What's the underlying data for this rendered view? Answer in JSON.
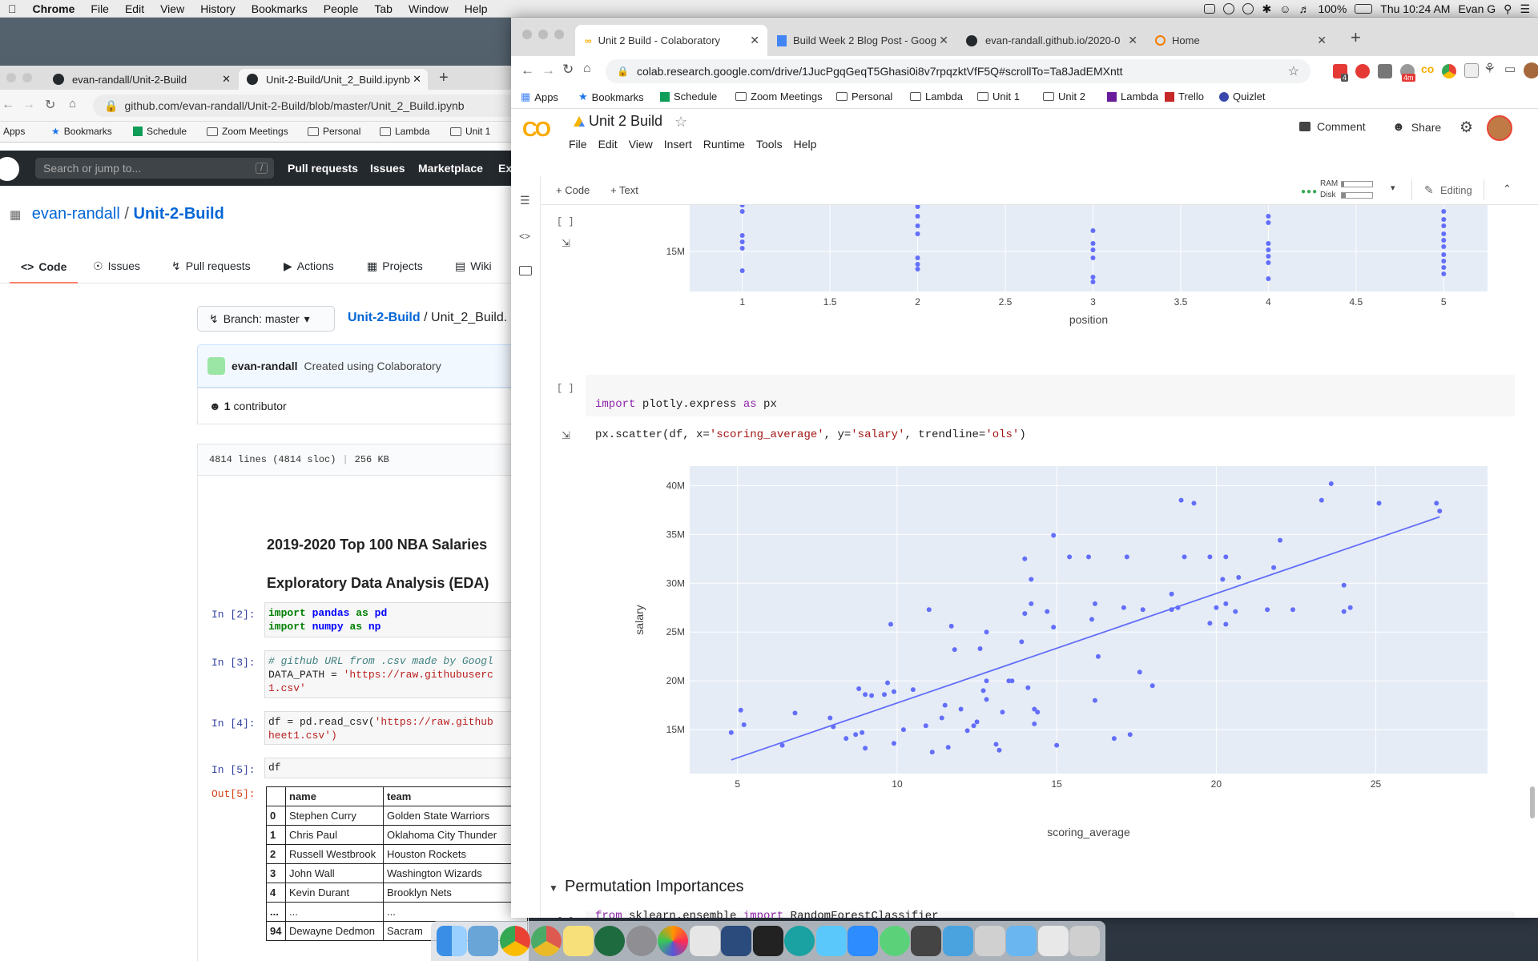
{
  "menubar": {
    "app": "Chrome",
    "items": [
      "File",
      "Edit",
      "View",
      "History",
      "Bookmarks",
      "People",
      "Tab",
      "Window",
      "Help"
    ],
    "battery": "100%",
    "clock": "Thu 10:24 AM",
    "user": "Evan G"
  },
  "github_window": {
    "tabs": [
      "evan-randall/Unit-2-Build",
      "Unit-2-Build/Unit_2_Build.ipynb"
    ],
    "url": "github.com/evan-randall/Unit-2-Build/blob/master/Unit_2_Build.ipynb",
    "bookmarks": [
      "Apps",
      "Bookmarks",
      "Schedule",
      "Zoom Meetings",
      "Personal",
      "Lambda",
      "Unit 1"
    ],
    "search_placeholder": "Search or jump to...",
    "search_key": "/",
    "nav": [
      "Pull requests",
      "Issues",
      "Marketplace",
      "Ex"
    ],
    "repo_owner": "evan-randall",
    "repo_sep": "/",
    "repo_name": "Unit-2-Build",
    "repo_tabs": [
      "Code",
      "Issues",
      "Pull requests",
      "Actions",
      "Projects",
      "Wiki"
    ],
    "branch": "Branch: master",
    "path_repo": "Unit-2-Build",
    "path_sep": "/",
    "path_file": "Unit_2_Build.",
    "commit_user": "evan-randall",
    "commit_msg": "Created using Colaboratory",
    "contributors_count": "1",
    "contributors_label": "contributor",
    "file_lines": "4814 lines (4814 sloc)",
    "file_size": "256 KB",
    "nb_title1": "2019-2020 Top 100 NBA Salaries",
    "nb_title2": "Exploratory Data Analysis (EDA)",
    "prompts": [
      "In [2]:",
      "In [3]:",
      "In [4]:",
      "In [5]:",
      "Out[5]:"
    ],
    "code2_kw1": "import",
    "code2_mod1": "pandas",
    "code2_as1": "as",
    "code2_al1": "pd",
    "code2_kw2": "import",
    "code2_mod2": "numpy",
    "code2_as2": "as",
    "code2_al2": "np",
    "code3_comment": "# github URL from .csv made by Googl",
    "code3_line2a": "DATA_PATH = ",
    "code3_line2b": "'https://raw.githubuserc",
    "code3_line3": "1.csv'",
    "code4_line1a": "df = pd.read_csv(",
    "code4_line1b": "'https://raw.github",
    "code4_line2": "heet1.csv')",
    "code5": "df",
    "table_headers": [
      "",
      "name",
      "team"
    ],
    "table_rows": [
      [
        "0",
        "Stephen Curry",
        "Golden State Warriors"
      ],
      [
        "1",
        "Chris Paul",
        "Oklahoma City Thunder"
      ],
      [
        "2",
        "Russell Westbrook",
        "Houston Rockets"
      ],
      [
        "3",
        "John Wall",
        "Washington Wizards"
      ],
      [
        "4",
        "Kevin Durant",
        "Brooklyn Nets"
      ],
      [
        "...",
        "...",
        "..."
      ],
      [
        "94",
        "Dewayne Dedmon",
        "Sacram"
      ]
    ]
  },
  "colab_window": {
    "tabs": [
      "Unit 2 Build - Colaboratory",
      "Build Week 2 Blog Post - Goog",
      "evan-randall.github.io/2020-0",
      "Home"
    ],
    "url": "colab.research.google.com/drive/1JucPgqGeqT5Ghasi0i8v7rpqzktVfF5Q#scrollTo=Ta8JadEMXntt",
    "ext_badges": [
      "4",
      "4m"
    ],
    "bookmarks": [
      "Apps",
      "Bookmarks",
      "Schedule",
      "Zoom Meetings",
      "Personal",
      "Lambda",
      "Unit 1",
      "Unit 2",
      "Lambda",
      "Trello",
      "Quizlet"
    ],
    "logo": "CO",
    "title": "Unit 2 Build",
    "menu": [
      "File",
      "Edit",
      "View",
      "Insert",
      "Runtime",
      "Tools",
      "Help"
    ],
    "comment": "Comment",
    "share": "Share",
    "add_code": "+ Code",
    "add_text": "+ Text",
    "ram": "RAM",
    "disk": "Disk",
    "editing": "Editing",
    "cell_bracket": "[ ]",
    "code_line1_kw": "import",
    "code_line1_mod": " plotly.express ",
    "code_line1_as": "as",
    "code_line1_al": " px",
    "code_line2a": "px.scatter(df, x=",
    "code_line2b": "'scoring_average'",
    "code_line2c": ", y=",
    "code_line2d": "'salary'",
    "code_line2e": ", trendline=",
    "code_line2f": "'ols'",
    "code_line2g": ")",
    "section_title": "Permutation Importances",
    "next_code_kw1": "from",
    "next_code_mod": " sklearn.ensemble ",
    "next_code_kw2": "import",
    "next_code_cls": " RandomForestClassifier"
  },
  "chart_data": [
    {
      "type": "scatter",
      "xlabel": "position",
      "ylabel": "",
      "x_ticks": [
        "1",
        "1.5",
        "2",
        "2.5",
        "3",
        "3.5",
        "4",
        "4.5",
        "5"
      ],
      "y_ticks": [
        "15M"
      ],
      "xlim": [
        0.7,
        5.25
      ],
      "ylim": [
        12.5,
        17.9
      ],
      "points": [
        [
          1,
          17.9
        ],
        [
          1,
          17.5
        ],
        [
          1,
          16.0
        ],
        [
          1,
          15.6
        ],
        [
          1,
          15.2
        ],
        [
          1,
          13.8
        ],
        [
          2,
          17.8
        ],
        [
          2,
          17.2
        ],
        [
          2,
          16.6
        ],
        [
          2,
          16.1
        ],
        [
          2,
          14.6
        ],
        [
          2,
          14.2
        ],
        [
          2,
          13.9
        ],
        [
          3,
          16.3
        ],
        [
          3,
          15.5
        ],
        [
          3,
          15.1
        ],
        [
          3,
          14.6
        ],
        [
          3,
          13.4
        ],
        [
          3,
          13.1
        ],
        [
          4,
          17.2
        ],
        [
          4,
          16.8
        ],
        [
          4,
          15.5
        ],
        [
          4,
          15.1
        ],
        [
          4,
          14.7
        ],
        [
          4,
          14.3
        ],
        [
          4,
          13.3
        ],
        [
          5,
          17.5
        ],
        [
          5,
          17.0
        ],
        [
          5,
          16.6
        ],
        [
          5,
          16.1
        ],
        [
          5,
          15.7
        ],
        [
          5,
          15.3
        ],
        [
          5,
          14.8
        ],
        [
          5,
          14.4
        ],
        [
          5,
          14.0
        ],
        [
          5,
          13.6
        ]
      ],
      "colors": {
        "marker": "#636efa",
        "plot_bg": "#e5ecf6"
      }
    },
    {
      "type": "scatter",
      "xlabel": "scoring_average",
      "ylabel": "salary",
      "x_ticks": [
        "5",
        "10",
        "15",
        "20",
        "25"
      ],
      "y_ticks": [
        "15M",
        "20M",
        "25M",
        "30M",
        "35M",
        "40M"
      ],
      "xlim": [
        3.5,
        28.5
      ],
      "ylim": [
        10.5,
        42.0
      ],
      "trendline": {
        "x0": 4.8,
        "y0": 11.9,
        "x1": 27.0,
        "y1": 36.8
      },
      "points": [
        [
          4.8,
          14.7
        ],
        [
          5.1,
          17.0
        ],
        [
          5.2,
          15.5
        ],
        [
          6.4,
          13.4
        ],
        [
          6.8,
          16.7
        ],
        [
          7.9,
          16.2
        ],
        [
          8.0,
          15.3
        ],
        [
          8.4,
          14.1
        ],
        [
          8.7,
          14.5
        ],
        [
          8.8,
          19.2
        ],
        [
          8.9,
          14.7
        ],
        [
          9.0,
          13.1
        ],
        [
          9.0,
          18.6
        ],
        [
          9.2,
          18.5
        ],
        [
          9.6,
          18.6
        ],
        [
          9.7,
          19.8
        ],
        [
          9.8,
          25.8
        ],
        [
          9.9,
          18.9
        ],
        [
          9.9,
          13.6
        ],
        [
          10.2,
          15.0
        ],
        [
          10.5,
          19.1
        ],
        [
          10.9,
          15.4
        ],
        [
          11.0,
          27.3
        ],
        [
          11.1,
          12.7
        ],
        [
          11.4,
          16.2
        ],
        [
          11.5,
          17.5
        ],
        [
          11.6,
          13.2
        ],
        [
          11.7,
          25.6
        ],
        [
          11.8,
          23.2
        ],
        [
          12.0,
          17.1
        ],
        [
          12.2,
          14.9
        ],
        [
          12.4,
          15.4
        ],
        [
          12.5,
          15.8
        ],
        [
          12.6,
          23.3
        ],
        [
          12.7,
          19.0
        ],
        [
          12.8,
          18.1
        ],
        [
          12.8,
          20.0
        ],
        [
          12.8,
          25.0
        ],
        [
          13.1,
          13.5
        ],
        [
          13.2,
          12.9
        ],
        [
          13.3,
          16.8
        ],
        [
          13.5,
          20.0
        ],
        [
          13.6,
          20.0
        ],
        [
          13.9,
          24.0
        ],
        [
          14.0,
          32.5
        ],
        [
          14.0,
          26.9
        ],
        [
          14.1,
          19.3
        ],
        [
          14.2,
          30.4
        ],
        [
          14.2,
          27.9
        ],
        [
          14.3,
          15.6
        ],
        [
          14.3,
          17.1
        ],
        [
          14.4,
          16.8
        ],
        [
          14.7,
          27.1
        ],
        [
          14.9,
          25.5
        ],
        [
          14.9,
          34.9
        ],
        [
          15.0,
          13.4
        ],
        [
          15.4,
          32.7
        ],
        [
          16.0,
          32.7
        ],
        [
          16.1,
          26.3
        ],
        [
          16.2,
          27.9
        ],
        [
          16.2,
          18.0
        ],
        [
          16.3,
          22.5
        ],
        [
          16.8,
          14.1
        ],
        [
          17.1,
          27.5
        ],
        [
          17.2,
          32.7
        ],
        [
          17.3,
          14.5
        ],
        [
          17.6,
          20.9
        ],
        [
          17.7,
          27.3
        ],
        [
          18.0,
          19.5
        ],
        [
          18.6,
          27.3
        ],
        [
          18.6,
          28.9
        ],
        [
          18.8,
          27.5
        ],
        [
          18.9,
          38.5
        ],
        [
          19.0,
          32.7
        ],
        [
          19.3,
          38.2
        ],
        [
          19.8,
          32.7
        ],
        [
          19.8,
          25.9
        ],
        [
          20.0,
          27.5
        ],
        [
          20.2,
          30.4
        ],
        [
          20.3,
          25.8
        ],
        [
          20.3,
          27.9
        ],
        [
          20.3,
          32.7
        ],
        [
          20.6,
          27.1
        ],
        [
          20.7,
          30.6
        ],
        [
          21.6,
          27.3
        ],
        [
          21.8,
          31.6
        ],
        [
          22.0,
          34.4
        ],
        [
          22.4,
          27.3
        ],
        [
          23.3,
          38.5
        ],
        [
          23.6,
          40.2
        ],
        [
          24.0,
          29.8
        ],
        [
          24.0,
          27.1
        ],
        [
          24.2,
          27.5
        ],
        [
          25.1,
          38.2
        ],
        [
          26.9,
          38.2
        ],
        [
          27.0,
          37.4
        ]
      ],
      "colors": {
        "marker": "#636efa",
        "trendline": "#636efa",
        "plot_bg": "#e5ecf6"
      }
    }
  ]
}
